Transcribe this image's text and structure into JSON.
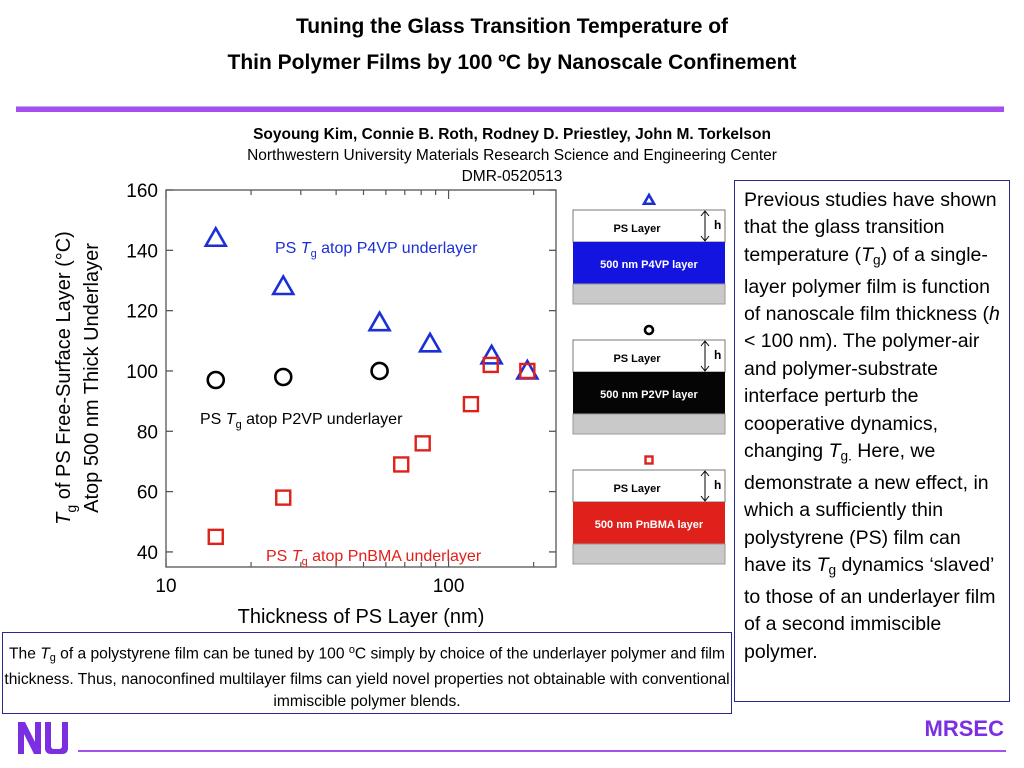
{
  "header": {
    "title_line1": "Tuning the Glass Transition Temperature of",
    "title_line2": "Thin Polymer Films by 100 ºC by Nanoscale Confinement",
    "authors": "Soyoung Kim, Connie B. Roth, Rodney D. Priestley, John M. Torkelson",
    "affiliation": "Northwestern University Materials Research Science and Engineering Center",
    "grant": "DMR-0520513"
  },
  "chart_data": {
    "type": "scatter",
    "x_scale": "log",
    "xlim": [
      10,
      240
    ],
    "ylim": [
      35,
      160
    ],
    "xticks": [
      10,
      100
    ],
    "yticks": [
      40,
      60,
      80,
      100,
      120,
      140,
      160
    ],
    "xlabel": "Thickness of PS Layer  (nm)",
    "ylabel_line1_pre": "T",
    "ylabel_line1_sub": "g",
    "ylabel_line1_post": " of PS Free-Surface Layer  (°C)",
    "ylabel_line2": "Atop 500 nm Thick Underlayer",
    "series": [
      {
        "name": "PS Tg atop P4VP underlayer",
        "label_pre": "PS ",
        "label_T": "T",
        "label_sub": "g",
        "label_post": " atop P4VP underlayer",
        "marker": "triangle",
        "color": "#1a2fd6",
        "points": [
          [
            15,
            144
          ],
          [
            26,
            128
          ],
          [
            57,
            116
          ],
          [
            86,
            109
          ],
          [
            142,
            105
          ],
          [
            190,
            100
          ]
        ]
      },
      {
        "name": "PS Tg atop P2VP underlayer",
        "label_pre": "PS ",
        "label_T": "T",
        "label_sub": "g",
        "label_post": " atop P2VP underlayer",
        "marker": "circle",
        "color": "#000000",
        "points": [
          [
            15,
            97
          ],
          [
            26,
            98
          ],
          [
            57,
            100
          ]
        ]
      },
      {
        "name": "PS Tg atop PnBMA underlayer",
        "label_pre": "PS ",
        "label_T": "T",
        "label_sub": "g",
        "label_post": " atop PnBMA underlayer",
        "marker": "square",
        "color": "#e0201b",
        "points": [
          [
            15,
            45
          ],
          [
            26,
            58
          ],
          [
            68,
            69
          ],
          [
            81,
            76
          ],
          [
            120,
            89
          ],
          [
            141,
            102
          ],
          [
            190,
            100
          ]
        ]
      }
    ]
  },
  "schematics": [
    {
      "marker": "triangle",
      "marker_color": "#1a2fd6",
      "top_label": "PS Layer",
      "h_label": "h",
      "sub_label": "500 nm P4VP layer",
      "sub_color": "#1414e0"
    },
    {
      "marker": "circle",
      "marker_color": "#000000",
      "top_label": "PS Layer",
      "h_label": "h",
      "sub_label": "500 nm P2VP layer",
      "sub_color": "#050505"
    },
    {
      "marker": "square",
      "marker_color": "#e0201b",
      "top_label": "PS Layer",
      "h_label": "h",
      "sub_label": "500 nm PnBMA layer",
      "sub_color": "#e0201b"
    }
  ],
  "sidebar": {
    "t1": "Previous studies have shown that the glass transition temperature (",
    "tg_T": "T",
    "tg_g": "g",
    "t2": ") of a single-layer polymer film is function of nanoscale film thickness (",
    "h": "h",
    "t3": " < 100 nm). The polymer-air and polymer-substrate interface perturb the cooperative dynamics, changing ",
    "tg2_T": "T",
    "tg2_g": "g.",
    "t4": " Here, we demonstrate a new effect, in which a sufficiently thin polystyrene (PS) film can have its ",
    "tg3_T": "T",
    "tg3_g": "g",
    "t5": " dynamics ‘slaved’ to those of an underlayer film of a second immiscible polymer."
  },
  "summary": {
    "p1": "The ",
    "tg_T": "T",
    "tg_g": "g",
    "p2": " of a polystyrene film can be tuned by 100 ",
    "deg_o": "o",
    "p3": "C simply by   choice of the underlayer polymer and film thickness.  Thus, nanoconfined multilayer films can yield novel properties not obtainable with conventional immiscible polymer blends."
  },
  "footer": {
    "logo_text": "NU",
    "mrsec": "MRSEC",
    "accent_color": "#a64ff0"
  }
}
